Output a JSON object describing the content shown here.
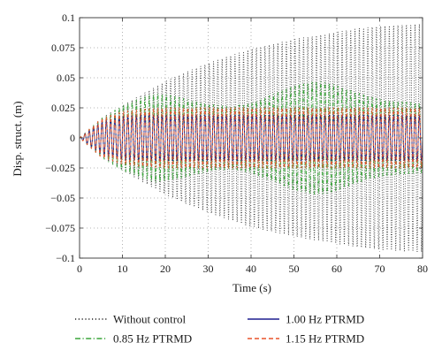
{
  "chart_data": {
    "type": "line",
    "title": "",
    "xlabel": "Time (s)",
    "ylabel": "Disp. struct. (m)",
    "xlim": [
      0,
      80
    ],
    "ylim": [
      -0.1,
      0.1
    ],
    "xticks": [
      0,
      10,
      20,
      30,
      40,
      50,
      60,
      70,
      80
    ],
    "xtick_labels": [
      "0",
      "10",
      "20",
      "30",
      "40",
      "50",
      "60",
      "70",
      "80"
    ],
    "yticks": [
      0.1,
      0.075,
      0.05,
      0.025,
      0,
      -0.025,
      -0.05,
      -0.075,
      -0.1
    ],
    "ytick_labels": [
      "0.1",
      "0.075",
      "0.05",
      "0.025",
      "0",
      "−0.025",
      "−0.05",
      "−0.075",
      "−0.1"
    ],
    "grid": true,
    "legend_position": "below",
    "series": [
      {
        "name": "Without control",
        "color": "#222222",
        "style": "dotted",
        "envelope": {
          "x": [
            0,
            5,
            10,
            15,
            20,
            25,
            30,
            35,
            40,
            45,
            50,
            55,
            60,
            65,
            70,
            75,
            80
          ],
          "amplitude": [
            0,
            0.016,
            0.027,
            0.037,
            0.047,
            0.055,
            0.062,
            0.068,
            0.074,
            0.078,
            0.082,
            0.085,
            0.088,
            0.091,
            0.093,
            0.094,
            0.095
          ]
        }
      },
      {
        "name": "0.85 Hz PTRMD",
        "color": "#3aa63a",
        "style": "dashdot",
        "envelope": {
          "x": [
            0,
            5,
            10,
            15,
            18,
            22,
            26,
            30,
            35,
            40,
            45,
            50,
            55,
            58,
            62,
            66,
            70,
            75,
            80
          ],
          "amplitude": [
            0,
            0.016,
            0.027,
            0.034,
            0.037,
            0.035,
            0.031,
            0.028,
            0.026,
            0.029,
            0.036,
            0.043,
            0.047,
            0.046,
            0.041,
            0.036,
            0.032,
            0.03,
            0.029
          ]
        }
      },
      {
        "name": "1.00 Hz PTRMD",
        "color": "#1f1f8f",
        "style": "solid",
        "envelope": {
          "x": [
            0,
            5,
            10,
            15,
            20,
            25,
            30,
            40,
            50,
            60,
            70,
            80
          ],
          "amplitude": [
            0,
            0.013,
            0.018,
            0.019,
            0.019,
            0.019,
            0.019,
            0.019,
            0.019,
            0.019,
            0.019,
            0.019
          ]
        }
      },
      {
        "name": "1.15 Hz PTRMD",
        "color": "#e8542a",
        "style": "dashed",
        "envelope": {
          "x": [
            0,
            5,
            10,
            15,
            20,
            25,
            30,
            40,
            50,
            60,
            70,
            80
          ],
          "amplitude": [
            0,
            0.016,
            0.022,
            0.024,
            0.025,
            0.025,
            0.025,
            0.025,
            0.025,
            0.025,
            0.025,
            0.025
          ]
        }
      }
    ]
  }
}
